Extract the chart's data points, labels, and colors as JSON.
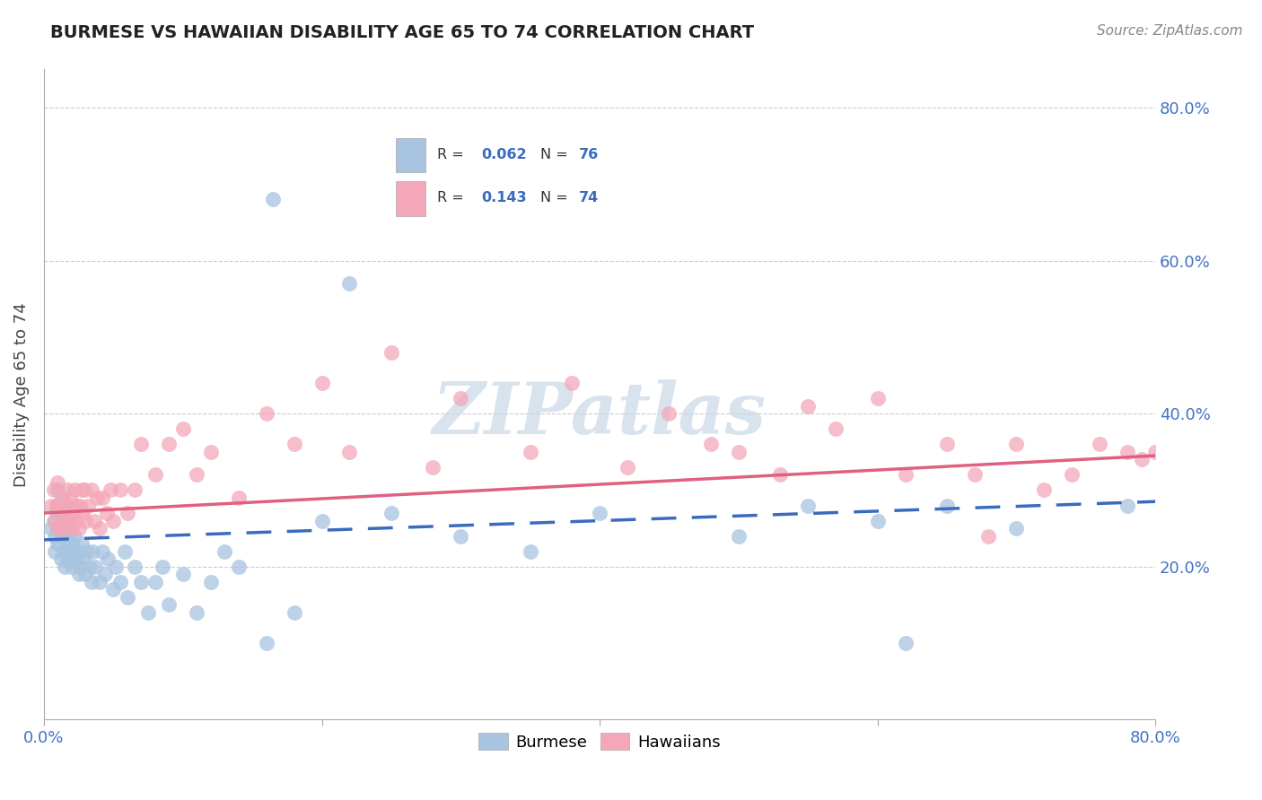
{
  "title": "BURMESE VS HAWAIIAN DISABILITY AGE 65 TO 74 CORRELATION CHART",
  "source": "Source: ZipAtlas.com",
  "ylabel": "Disability Age 65 to 74",
  "xlim": [
    0.0,
    0.8
  ],
  "ylim": [
    0.0,
    0.85
  ],
  "xtick_vals": [
    0.0,
    0.2,
    0.4,
    0.6,
    0.8
  ],
  "xtick_labels": [
    "0.0%",
    "",
    "",
    "",
    "80.0%"
  ],
  "ytick_vals": [
    0.2,
    0.4,
    0.6,
    0.8
  ],
  "ytick_labels": [
    "20.0%",
    "40.0%",
    "60.0%",
    "80.0%"
  ],
  "burmese_R": 0.062,
  "burmese_N": 76,
  "hawaiian_R": 0.143,
  "hawaiian_N": 74,
  "burmese_color": "#a8c4e0",
  "hawaiian_color": "#f4a7b9",
  "burmese_line_color": "#3a6bbf",
  "hawaiian_line_color": "#e06080",
  "burmese_line_start_y": 0.235,
  "burmese_line_end_y": 0.285,
  "hawaiian_line_start_y": 0.27,
  "hawaiian_line_end_y": 0.345,
  "watermark_text": "ZIPatlas",
  "burmese_x": [
    0.005,
    0.007,
    0.008,
    0.008,
    0.009,
    0.01,
    0.01,
    0.01,
    0.01,
    0.012,
    0.013,
    0.013,
    0.013,
    0.014,
    0.014,
    0.015,
    0.015,
    0.016,
    0.016,
    0.017,
    0.018,
    0.018,
    0.018,
    0.019,
    0.02,
    0.02,
    0.021,
    0.022,
    0.023,
    0.025,
    0.025,
    0.026,
    0.027,
    0.028,
    0.03,
    0.031,
    0.033,
    0.034,
    0.035,
    0.037,
    0.04,
    0.042,
    0.044,
    0.046,
    0.05,
    0.052,
    0.055,
    0.058,
    0.06,
    0.065,
    0.07,
    0.075,
    0.08,
    0.085,
    0.09,
    0.1,
    0.11,
    0.12,
    0.13,
    0.14,
    0.16,
    0.18,
    0.2,
    0.165,
    0.22,
    0.25,
    0.3,
    0.35,
    0.4,
    0.5,
    0.55,
    0.6,
    0.62,
    0.65,
    0.7,
    0.78
  ],
  "burmese_y": [
    0.25,
    0.26,
    0.22,
    0.24,
    0.27,
    0.23,
    0.25,
    0.28,
    0.3,
    0.21,
    0.24,
    0.26,
    0.29,
    0.22,
    0.27,
    0.2,
    0.25,
    0.23,
    0.28,
    0.21,
    0.24,
    0.26,
    0.22,
    0.25,
    0.2,
    0.23,
    0.22,
    0.24,
    0.21,
    0.19,
    0.22,
    0.2,
    0.23,
    0.21,
    0.19,
    0.22,
    0.2,
    0.18,
    0.22,
    0.2,
    0.18,
    0.22,
    0.19,
    0.21,
    0.17,
    0.2,
    0.18,
    0.22,
    0.16,
    0.2,
    0.18,
    0.14,
    0.18,
    0.2,
    0.15,
    0.19,
    0.14,
    0.18,
    0.22,
    0.2,
    0.1,
    0.14,
    0.26,
    0.68,
    0.57,
    0.27,
    0.24,
    0.22,
    0.27,
    0.24,
    0.28,
    0.26,
    0.1,
    0.28,
    0.25,
    0.28
  ],
  "hawaiian_x": [
    0.005,
    0.007,
    0.008,
    0.009,
    0.01,
    0.01,
    0.01,
    0.012,
    0.013,
    0.014,
    0.015,
    0.016,
    0.017,
    0.018,
    0.019,
    0.02,
    0.02,
    0.021,
    0.022,
    0.023,
    0.024,
    0.025,
    0.026,
    0.027,
    0.028,
    0.029,
    0.03,
    0.032,
    0.034,
    0.036,
    0.038,
    0.04,
    0.042,
    0.045,
    0.048,
    0.05,
    0.055,
    0.06,
    0.065,
    0.07,
    0.08,
    0.09,
    0.1,
    0.11,
    0.12,
    0.14,
    0.16,
    0.18,
    0.2,
    0.22,
    0.25,
    0.28,
    0.3,
    0.35,
    0.38,
    0.42,
    0.45,
    0.48,
    0.5,
    0.53,
    0.55,
    0.57,
    0.6,
    0.62,
    0.65,
    0.67,
    0.68,
    0.7,
    0.72,
    0.74,
    0.76,
    0.78,
    0.79,
    0.8
  ],
  "hawaiian_y": [
    0.28,
    0.3,
    0.26,
    0.28,
    0.25,
    0.28,
    0.31,
    0.26,
    0.29,
    0.25,
    0.28,
    0.27,
    0.3,
    0.26,
    0.29,
    0.25,
    0.28,
    0.27,
    0.3,
    0.26,
    0.28,
    0.25,
    0.28,
    0.3,
    0.27,
    0.3,
    0.26,
    0.28,
    0.3,
    0.26,
    0.29,
    0.25,
    0.29,
    0.27,
    0.3,
    0.26,
    0.3,
    0.27,
    0.3,
    0.36,
    0.32,
    0.36,
    0.38,
    0.32,
    0.35,
    0.29,
    0.4,
    0.36,
    0.44,
    0.35,
    0.48,
    0.33,
    0.42,
    0.35,
    0.44,
    0.33,
    0.4,
    0.36,
    0.35,
    0.32,
    0.41,
    0.38,
    0.42,
    0.32,
    0.36,
    0.32,
    0.24,
    0.36,
    0.3,
    0.32,
    0.36,
    0.35,
    0.34,
    0.35
  ]
}
